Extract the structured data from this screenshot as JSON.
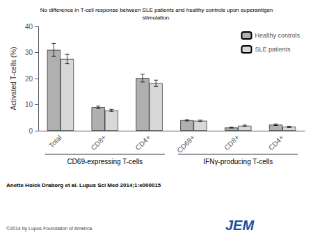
{
  "chart_data": {
    "type": "bar",
    "title": "No difference in T-cell response between SLE patients and healthy controls upon superantigen\nstimulation.",
    "ylabel": "Activated T-cells (%)",
    "categories": [
      "Total",
      "CD8+",
      "CD4+",
      "CD69+",
      "CD8+",
      "CD4+"
    ],
    "series": [
      {
        "name": "Healthy controls",
        "color": "#b0b0b0",
        "values": [
          31.0,
          9.0,
          20.2,
          4.0,
          1.2,
          2.3
        ],
        "errors": [
          2.5,
          0.5,
          1.5,
          0.25,
          0.15,
          0.3
        ]
      },
      {
        "name": "SLE patients",
        "color": "#d8d8d8",
        "values": [
          27.5,
          7.8,
          18.2,
          3.8,
          1.9,
          1.5
        ],
        "errors": [
          1.8,
          0.4,
          1.2,
          0.25,
          0.25,
          0.25
        ]
      }
    ],
    "ylim": [
      0,
      40
    ],
    "yticks": [
      0,
      10,
      20,
      30,
      40
    ],
    "grid": false,
    "legend": "upper right",
    "annotations": [
      {
        "text": "CD69-expressing T-cells",
        "categories": [
          0,
          1,
          2
        ]
      },
      {
        "text": "IFNγ-producing T-cells",
        "categories": [
          3,
          4,
          5
        ]
      },
      {
        "text": "Anette Holck Draborg et al. Lupus Sci Med 2014;1:e000015"
      },
      {
        "text": "©2014 by Lupus Foundation of America"
      },
      {
        "text": "JEM",
        "color": "#1a4fa0"
      }
    ]
  }
}
